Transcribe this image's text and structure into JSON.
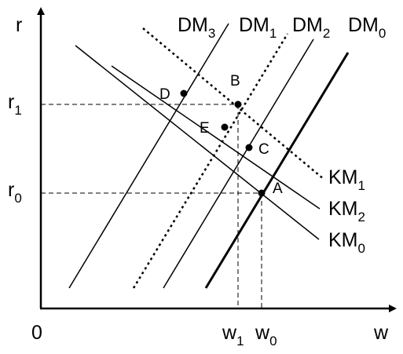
{
  "axes": {
    "y_label": "r",
    "x_label": "w",
    "origin_label": "0"
  },
  "y_ticks": [
    {
      "base": "r",
      "sub": "1"
    },
    {
      "base": "r",
      "sub": "0"
    }
  ],
  "x_ticks": [
    {
      "base": "w",
      "sub": "1"
    },
    {
      "base": "w",
      "sub": "0"
    }
  ],
  "dm_curves": [
    {
      "base": "DM",
      "sub": "3",
      "style": "thin"
    },
    {
      "base": "DM",
      "sub": "1",
      "style": "dotted"
    },
    {
      "base": "DM",
      "sub": "2",
      "style": "thin"
    },
    {
      "base": "DM",
      "sub": "0",
      "style": "thick"
    }
  ],
  "km_curves": [
    {
      "base": "KM",
      "sub": "1",
      "style": "dotted"
    },
    {
      "base": "KM",
      "sub": "2",
      "style": "thin"
    },
    {
      "base": "KM",
      "sub": "0",
      "style": "thin"
    }
  ],
  "points": [
    "D",
    "B",
    "E",
    "C",
    "A"
  ],
  "colors": {
    "ink": "#000000",
    "background": "#ffffff"
  }
}
